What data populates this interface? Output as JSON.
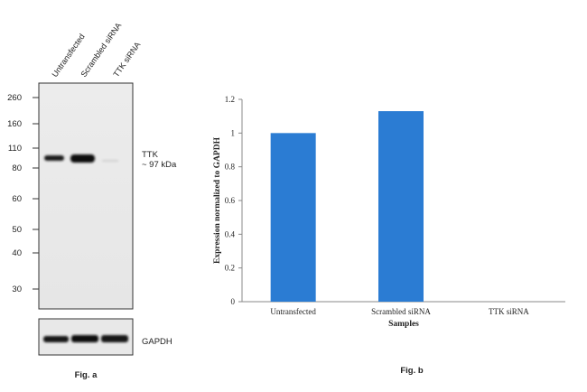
{
  "fig_a": {
    "caption": "Fig. a",
    "lanes": [
      "Untransfected",
      "Scrambled siRNA",
      "TTK siRNA"
    ],
    "markers": [
      "260",
      "160",
      "110",
      "80",
      "60",
      "50",
      "40",
      "30"
    ],
    "band_label": "TTK",
    "band_size": "~ 97 kDa",
    "loading_control": "GAPDH"
  },
  "fig_b": {
    "caption": "Fig. b"
  },
  "chart_data": {
    "type": "bar",
    "categories": [
      "Untransfected",
      "Scrambled siRNA",
      "TTK siRNA"
    ],
    "values": [
      1.0,
      1.13,
      0.0
    ],
    "xlabel": "Samples",
    "ylabel": "Expression normalized to GAPDH",
    "ylim": [
      0,
      1.2
    ],
    "yticks": [
      "0",
      "0.2",
      "0.4",
      "0.6",
      "0.8",
      "1",
      "1.2"
    ],
    "bar_color": "#2b7cd3",
    "grid": false,
    "legend": false
  }
}
